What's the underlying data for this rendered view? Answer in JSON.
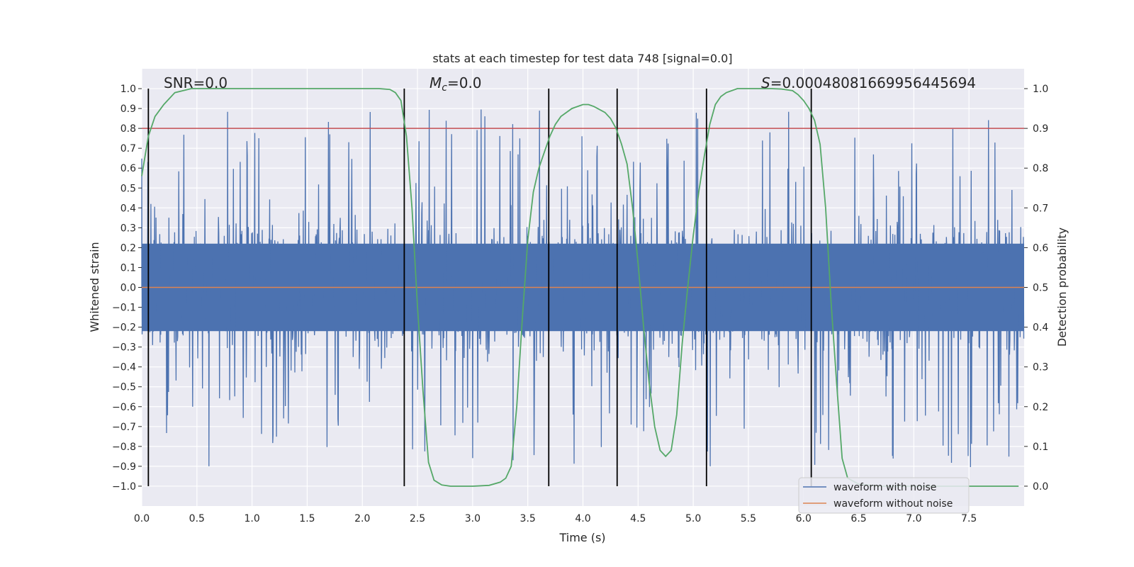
{
  "chart_data": {
    "type": "line",
    "title": "stats at each timestep for test data 748 [signal=0.0]",
    "xlabel": "Time (s)",
    "ylabel_left": "Whitened strain",
    "ylabel_right": "Detection probability",
    "xlim": [
      0,
      8
    ],
    "ylim_left": [
      -1.1,
      1.1
    ],
    "ylim_right": [
      -0.05,
      1.05
    ],
    "x_ticks": [
      0.0,
      0.5,
      1.0,
      1.5,
      2.0,
      2.5,
      3.0,
      3.5,
      4.0,
      4.5,
      5.0,
      5.5,
      6.0,
      6.5,
      7.0,
      7.5
    ],
    "x_tick_labels": [
      "0.0",
      "0.5",
      "1.0",
      "1.5",
      "2.0",
      "2.5",
      "3.0",
      "3.5",
      "4.0",
      "4.5",
      "5.0",
      "5.5",
      "6.0",
      "6.5",
      "7.0",
      "7.5"
    ],
    "y_left_ticks": [
      -1.0,
      -0.9,
      -0.8,
      -0.7,
      -0.6,
      -0.5,
      -0.4,
      -0.3,
      -0.2,
      -0.1,
      0.0,
      0.1,
      0.2,
      0.3,
      0.4,
      0.5,
      0.6,
      0.7,
      0.8,
      0.9,
      1.0
    ],
    "y_left_tick_labels": [
      "−1.0",
      "−0.9",
      "−0.8",
      "−0.7",
      "−0.6",
      "−0.5",
      "−0.4",
      "−0.3",
      "−0.2",
      "−0.1",
      "0.0",
      "0.1",
      "0.2",
      "0.3",
      "0.4",
      "0.5",
      "0.6",
      "0.7",
      "0.8",
      "0.9",
      "1.0"
    ],
    "y_right_ticks": [
      0.0,
      0.1,
      0.2,
      0.3,
      0.4,
      0.5,
      0.6,
      0.7,
      0.8,
      0.9,
      1.0
    ],
    "y_right_tick_labels": [
      "0.0",
      "0.1",
      "0.2",
      "0.3",
      "0.4",
      "0.5",
      "0.6",
      "0.7",
      "0.8",
      "0.9",
      "1.0"
    ],
    "annotations": {
      "snr": "SNR=0.0",
      "mc_symbol": "M",
      "mc_sub": "c",
      "mc_value": "=0.0",
      "s_symbol": "S",
      "s_value": "=0.00048081669956445694"
    },
    "threshold": {
      "value": 0.9,
      "axis": "right",
      "color": "#c44e52"
    },
    "vertical_lines_x": [
      0.06,
      2.38,
      3.69,
      4.31,
      5.12,
      6.07
    ],
    "noise_envelope": {
      "typical_amplitude": 0.4,
      "max_amplitude": 1.0
    },
    "series": [
      {
        "name": "waveform with noise",
        "color": "#4c72b0",
        "axis": "left",
        "kind": "noise"
      },
      {
        "name": "waveform without noise",
        "color": "#dd8452",
        "axis": "left",
        "kind": "flat",
        "value": 0.0
      },
      {
        "name": "detection probability",
        "color": "#55a868",
        "axis": "right",
        "legend": false,
        "x": [
          0.0,
          0.06,
          0.12,
          0.2,
          0.3,
          0.45,
          0.7,
          1.0,
          1.5,
          2.0,
          2.15,
          2.25,
          2.3,
          2.35,
          2.4,
          2.45,
          2.5,
          2.55,
          2.6,
          2.65,
          2.72,
          2.8,
          3.0,
          3.15,
          3.25,
          3.3,
          3.35,
          3.4,
          3.45,
          3.5,
          3.55,
          3.6,
          3.65,
          3.7,
          3.75,
          3.8,
          3.9,
          4.0,
          4.05,
          4.1,
          4.2,
          4.25,
          4.3,
          4.35,
          4.4,
          4.45,
          4.5,
          4.55,
          4.6,
          4.65,
          4.7,
          4.75,
          4.8,
          4.85,
          4.9,
          4.95,
          5.0,
          5.05,
          5.1,
          5.15,
          5.2,
          5.25,
          5.3,
          5.4,
          5.5,
          5.6,
          5.7,
          5.8,
          5.9,
          5.95,
          6.0,
          6.05,
          6.1,
          6.15,
          6.2,
          6.25,
          6.3,
          6.35,
          6.4,
          6.5,
          6.7,
          7.0,
          7.5,
          7.95
        ],
        "y": [
          0.78,
          0.88,
          0.93,
          0.96,
          0.99,
          1.0,
          1.0,
          1.0,
          1.0,
          1.0,
          1.0,
          0.998,
          0.99,
          0.97,
          0.88,
          0.7,
          0.45,
          0.24,
          0.06,
          0.015,
          0.003,
          0.0,
          0.0,
          0.002,
          0.01,
          0.02,
          0.05,
          0.2,
          0.42,
          0.62,
          0.74,
          0.8,
          0.84,
          0.88,
          0.91,
          0.93,
          0.95,
          0.96,
          0.96,
          0.955,
          0.94,
          0.925,
          0.9,
          0.86,
          0.81,
          0.7,
          0.56,
          0.4,
          0.26,
          0.15,
          0.09,
          0.075,
          0.09,
          0.18,
          0.36,
          0.5,
          0.63,
          0.74,
          0.83,
          0.91,
          0.96,
          0.98,
          0.99,
          1.0,
          1.0,
          1.0,
          1.0,
          0.999,
          0.995,
          0.985,
          0.97,
          0.95,
          0.92,
          0.86,
          0.7,
          0.46,
          0.26,
          0.07,
          0.02,
          0.005,
          0.0,
          0.0,
          0.0,
          0.0
        ]
      }
    ],
    "legend": {
      "placement": "lower-right",
      "entries": [
        "waveform with noise",
        "waveform without noise"
      ]
    }
  }
}
